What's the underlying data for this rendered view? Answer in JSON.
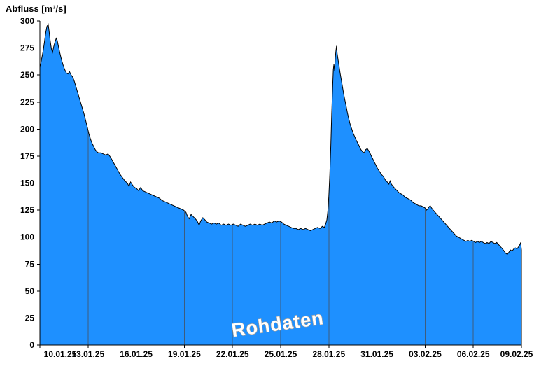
{
  "chart_data": {
    "type": "area",
    "title": "Abfluss [m³/s]",
    "ylabel": "Abfluss [m³/s]",
    "watermark": "Rohdaten",
    "ylim": [
      0,
      300
    ],
    "y_ticks": [
      0,
      25,
      50,
      75,
      100,
      125,
      150,
      175,
      200,
      225,
      250,
      275,
      300
    ],
    "x_tick_labels": [
      "10.01.25",
      "13.01.25",
      "16.01.25",
      "19.01.25",
      "22.01.25",
      "25.01.25",
      "28.01.25",
      "31.01.25",
      "03.02.25",
      "06.02.25",
      "09.02.25"
    ],
    "x_tick_days": [
      0,
      3,
      6,
      9,
      12,
      15,
      18,
      21,
      24,
      27,
      30
    ],
    "x_range_days": [
      0,
      30
    ],
    "grid": "vertical-drop-lines-inside-fill",
    "legend": "none",
    "colors": {
      "fill": "#1e90ff",
      "line": "#000000",
      "grid": "#3d5c7d",
      "axis": "#000000",
      "background": "#ffffff",
      "watermark_fill": "#ffffff",
      "watermark_stroke": "#9c9c9c"
    },
    "series": [
      {
        "name": "Abfluss Rohdaten",
        "points": [
          [
            0,
            257
          ],
          [
            0.06,
            261
          ],
          [
            0.12,
            266
          ],
          [
            0.2,
            272
          ],
          [
            0.28,
            280
          ],
          [
            0.36,
            289
          ],
          [
            0.44,
            295
          ],
          [
            0.52,
            297
          ],
          [
            0.58,
            290
          ],
          [
            0.64,
            282
          ],
          [
            0.72,
            274
          ],
          [
            0.79,
            271
          ],
          [
            0.86,
            276
          ],
          [
            0.95,
            281
          ],
          [
            1.02,
            284
          ],
          [
            1.08,
            282
          ],
          [
            1.15,
            277
          ],
          [
            1.25,
            270
          ],
          [
            1.35,
            264
          ],
          [
            1.45,
            259
          ],
          [
            1.55,
            255
          ],
          [
            1.65,
            252
          ],
          [
            1.75,
            251
          ],
          [
            1.85,
            253
          ],
          [
            1.95,
            250
          ],
          [
            2.05,
            248
          ],
          [
            2.15,
            244
          ],
          [
            2.25,
            239
          ],
          [
            2.35,
            234
          ],
          [
            2.45,
            229
          ],
          [
            2.55,
            224
          ],
          [
            2.65,
            219
          ],
          [
            2.75,
            214
          ],
          [
            2.85,
            208
          ],
          [
            2.95,
            202
          ],
          [
            3.05,
            196
          ],
          [
            3.15,
            191
          ],
          [
            3.25,
            187
          ],
          [
            3.35,
            184
          ],
          [
            3.45,
            181
          ],
          [
            3.55,
            179
          ],
          [
            3.65,
            178
          ],
          [
            3.8,
            178
          ],
          [
            3.95,
            177
          ],
          [
            4.1,
            176
          ],
          [
            4.25,
            177
          ],
          [
            4.4,
            174
          ],
          [
            4.55,
            170
          ],
          [
            4.7,
            166
          ],
          [
            4.85,
            162
          ],
          [
            5,
            158
          ],
          [
            5.15,
            155
          ],
          [
            5.3,
            152
          ],
          [
            5.45,
            150
          ],
          [
            5.55,
            147
          ],
          [
            5.65,
            151
          ],
          [
            5.78,
            148
          ],
          [
            5.9,
            146
          ],
          [
            6.02,
            145
          ],
          [
            6.15,
            143
          ],
          [
            6.28,
            146
          ],
          [
            6.4,
            143
          ],
          [
            6.55,
            142
          ],
          [
            6.7,
            141
          ],
          [
            6.85,
            140
          ],
          [
            7,
            139
          ],
          [
            7.15,
            138
          ],
          [
            7.3,
            137
          ],
          [
            7.45,
            136
          ],
          [
            7.6,
            134
          ],
          [
            7.75,
            133
          ],
          [
            7.9,
            132
          ],
          [
            8.05,
            131
          ],
          [
            8.2,
            130
          ],
          [
            8.35,
            129
          ],
          [
            8.5,
            128
          ],
          [
            8.65,
            127
          ],
          [
            8.8,
            126
          ],
          [
            8.95,
            125
          ],
          [
            9.1,
            123
          ],
          [
            9.2,
            119
          ],
          [
            9.3,
            117
          ],
          [
            9.42,
            121
          ],
          [
            9.55,
            119
          ],
          [
            9.68,
            117
          ],
          [
            9.8,
            115
          ],
          [
            9.92,
            111
          ],
          [
            10.02,
            115
          ],
          [
            10.15,
            118
          ],
          [
            10.28,
            116
          ],
          [
            10.4,
            114
          ],
          [
            10.55,
            113
          ],
          [
            10.7,
            112
          ],
          [
            10.85,
            113
          ],
          [
            11,
            112
          ],
          [
            11.15,
            113
          ],
          [
            11.3,
            111
          ],
          [
            11.45,
            112
          ],
          [
            11.6,
            111
          ],
          [
            11.75,
            112
          ],
          [
            11.9,
            111
          ],
          [
            12.05,
            112
          ],
          [
            12.2,
            111
          ],
          [
            12.35,
            110
          ],
          [
            12.5,
            112
          ],
          [
            12.65,
            111
          ],
          [
            12.8,
            110
          ],
          [
            12.95,
            111
          ],
          [
            13.1,
            112
          ],
          [
            13.25,
            111
          ],
          [
            13.4,
            112
          ],
          [
            13.55,
            111
          ],
          [
            13.7,
            112
          ],
          [
            13.85,
            111
          ],
          [
            14,
            112
          ],
          [
            14.15,
            113
          ],
          [
            14.3,
            114
          ],
          [
            14.45,
            113
          ],
          [
            14.6,
            115
          ],
          [
            14.75,
            114
          ],
          [
            14.9,
            115
          ],
          [
            15.05,
            114
          ],
          [
            15.2,
            112
          ],
          [
            15.35,
            111
          ],
          [
            15.5,
            110
          ],
          [
            15.65,
            109
          ],
          [
            15.8,
            108
          ],
          [
            15.95,
            108
          ],
          [
            16.1,
            107
          ],
          [
            16.25,
            108
          ],
          [
            16.4,
            107
          ],
          [
            16.55,
            108
          ],
          [
            16.7,
            107
          ],
          [
            16.85,
            106
          ],
          [
            17,
            107
          ],
          [
            17.15,
            108
          ],
          [
            17.3,
            109
          ],
          [
            17.45,
            108
          ],
          [
            17.6,
            110
          ],
          [
            17.72,
            109
          ],
          [
            17.8,
            112
          ],
          [
            17.88,
            116
          ],
          [
            17.94,
            124
          ],
          [
            18,
            138
          ],
          [
            18.06,
            158
          ],
          [
            18.12,
            184
          ],
          [
            18.18,
            214
          ],
          [
            18.24,
            240
          ],
          [
            18.28,
            255
          ],
          [
            18.32,
            260
          ],
          [
            18.36,
            254
          ],
          [
            18.4,
            266
          ],
          [
            18.44,
            272
          ],
          [
            18.48,
            277
          ],
          [
            18.52,
            270
          ],
          [
            18.58,
            264
          ],
          [
            18.64,
            258
          ],
          [
            18.7,
            252
          ],
          [
            18.77,
            246
          ],
          [
            18.84,
            240
          ],
          [
            18.92,
            233
          ],
          [
            19,
            227
          ],
          [
            19.08,
            221
          ],
          [
            19.16,
            215
          ],
          [
            19.25,
            209
          ],
          [
            19.34,
            204
          ],
          [
            19.43,
            200
          ],
          [
            19.52,
            196
          ],
          [
            19.61,
            193
          ],
          [
            19.7,
            190
          ],
          [
            19.8,
            187
          ],
          [
            19.9,
            184
          ],
          [
            20,
            181
          ],
          [
            20.1,
            179
          ],
          [
            20.2,
            178
          ],
          [
            20.3,
            181
          ],
          [
            20.4,
            182
          ],
          [
            20.48,
            180
          ],
          [
            20.56,
            178
          ],
          [
            20.65,
            175
          ],
          [
            20.75,
            172
          ],
          [
            20.85,
            169
          ],
          [
            20.95,
            166
          ],
          [
            21.05,
            163
          ],
          [
            21.15,
            161
          ],
          [
            21.28,
            158
          ],
          [
            21.4,
            156
          ],
          [
            21.52,
            153
          ],
          [
            21.64,
            151
          ],
          [
            21.74,
            149
          ],
          [
            21.82,
            152
          ],
          [
            21.9,
            149
          ],
          [
            22,
            147
          ],
          [
            22.12,
            145
          ],
          [
            22.25,
            143
          ],
          [
            22.38,
            141
          ],
          [
            22.5,
            140
          ],
          [
            22.62,
            139
          ],
          [
            22.75,
            137
          ],
          [
            22.88,
            136
          ],
          [
            23,
            135
          ],
          [
            23.12,
            134
          ],
          [
            23.25,
            132
          ],
          [
            23.38,
            131
          ],
          [
            23.5,
            130
          ],
          [
            23.62,
            129
          ],
          [
            23.75,
            129
          ],
          [
            23.88,
            128
          ],
          [
            24,
            127
          ],
          [
            24.08,
            125
          ],
          [
            24.16,
            126
          ],
          [
            24.24,
            128
          ],
          [
            24.32,
            129
          ],
          [
            24.4,
            127
          ],
          [
            24.5,
            125
          ],
          [
            24.62,
            123
          ],
          [
            24.74,
            121
          ],
          [
            24.86,
            119
          ],
          [
            24.98,
            117
          ],
          [
            25.1,
            115
          ],
          [
            25.22,
            113
          ],
          [
            25.34,
            111
          ],
          [
            25.46,
            109
          ],
          [
            25.58,
            107
          ],
          [
            25.7,
            105
          ],
          [
            25.82,
            103
          ],
          [
            25.94,
            101
          ],
          [
            26.06,
            100
          ],
          [
            26.18,
            99
          ],
          [
            26.3,
            98
          ],
          [
            26.42,
            97
          ],
          [
            26.54,
            96
          ],
          [
            26.66,
            97
          ],
          [
            26.78,
            96
          ],
          [
            26.9,
            97
          ],
          [
            27.02,
            96
          ],
          [
            27.14,
            95
          ],
          [
            27.26,
            96
          ],
          [
            27.38,
            95
          ],
          [
            27.5,
            96
          ],
          [
            27.62,
            95
          ],
          [
            27.74,
            94
          ],
          [
            27.86,
            95
          ],
          [
            27.98,
            94
          ],
          [
            28.1,
            96
          ],
          [
            28.22,
            95
          ],
          [
            28.34,
            94
          ],
          [
            28.46,
            95
          ],
          [
            28.58,
            93
          ],
          [
            28.7,
            91
          ],
          [
            28.82,
            89
          ],
          [
            28.92,
            87
          ],
          [
            29.02,
            85
          ],
          [
            29.12,
            84
          ],
          [
            29.22,
            86
          ],
          [
            29.32,
            88
          ],
          [
            29.42,
            87
          ],
          [
            29.52,
            89
          ],
          [
            29.62,
            90
          ],
          [
            29.72,
            89
          ],
          [
            29.82,
            91
          ],
          [
            29.9,
            93
          ],
          [
            29.95,
            95
          ],
          [
            30,
            88
          ]
        ]
      }
    ]
  }
}
